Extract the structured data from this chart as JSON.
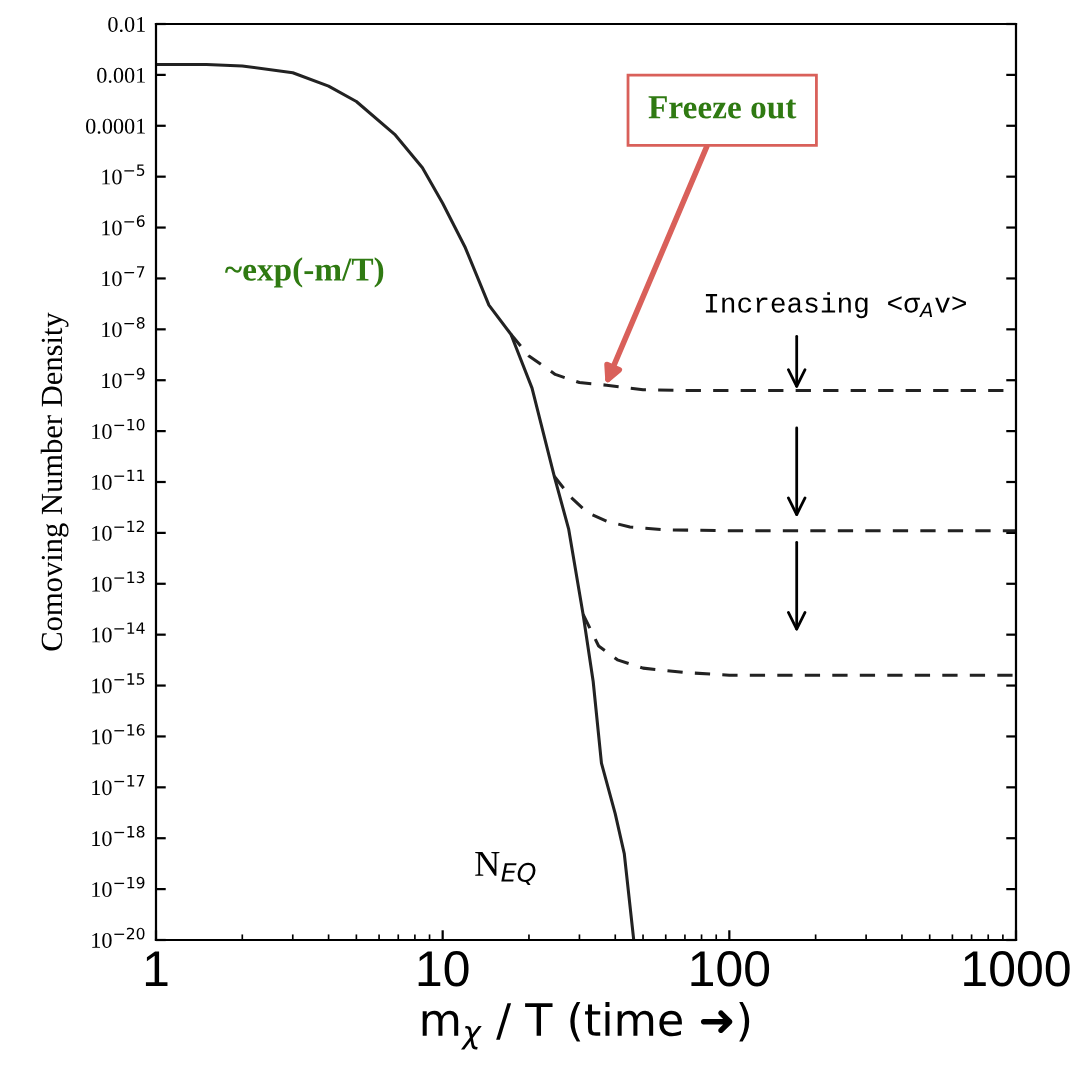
{
  "chart_data": {
    "type": "line",
    "xlabel": "m$_{χ}$ / T (time ➜)",
    "ylabel": "Comoving Number Density",
    "log": "xy",
    "xlim": [
      1,
      1000
    ],
    "ylim": [
      1e-20,
      0.01
    ],
    "xticks": [
      1,
      10,
      100,
      1000
    ],
    "yticks": [
      0.01,
      0.001,
      0.0001,
      {
        "value": 1e-05,
        "label": "10$^{−5}$"
      },
      {
        "value": 1e-06,
        "label": "10$^{−6}$"
      },
      {
        "value": 1e-07,
        "label": "10$^{−7}$"
      },
      {
        "value": 1e-08,
        "label": "10$^{−8}$"
      },
      {
        "value": 1e-09,
        "label": "10$^{−9}$"
      },
      {
        "value": 1e-10,
        "label": "10$^{−10}$"
      },
      {
        "value": 1e-11,
        "label": "10$^{−11}$"
      },
      {
        "value": 1e-12,
        "label": "10$^{−12}$"
      },
      {
        "value": 1e-13,
        "label": "10$^{−13}$"
      },
      {
        "value": 1e-14,
        "label": "10$^{−14}$"
      },
      {
        "value": 1e-15,
        "label": "10$^{−15}$"
      },
      {
        "value": 1e-16,
        "label": "10$^{−16}$"
      },
      {
        "value": 1e-17,
        "label": "10$^{−17}$"
      },
      {
        "value": 1e-18,
        "label": "10$^{−18}$"
      },
      {
        "value": 1e-19,
        "label": "10$^{−19}$"
      },
      {
        "value": 1e-20,
        "label": "10$^{−20}$"
      }
    ],
    "series": [
      {
        "color": "#222222",
        "line_style": "solid",
        "x": [
          1,
          1.5,
          2,
          3,
          4,
          5,
          6.8,
          8.5,
          10,
          12,
          14.5,
          17.3,
          20.5,
          24.5,
          27.5,
          30.9,
          33.5,
          35.8,
          40,
          43,
          46.4
        ],
        "values": [
          0.0016,
          0.0016,
          0.0015,
          0.0011,
          0.0006,
          0.0003,
          6.8e-05,
          1.5e-05,
          3e-06,
          4e-07,
          3e-08,
          8e-09,
          7e-10,
          1.3e-11,
          1.2e-12,
          2.5e-14,
          1.2e-15,
          3e-17,
          3e-18,
          5e-19,
          1e-20
        ]
      },
      {
        "color": "#222222",
        "line_style": "dashed",
        "x": [
          17.3,
          20,
          24.7,
          30,
          37.3,
          50,
          70,
          100,
          200,
          500,
          1000
        ],
        "values": [
          8e-09,
          3e-09,
          1.3e-09,
          9e-10,
          8e-10,
          6.5e-10,
          6.3e-10,
          6.3e-10,
          6.3e-10,
          6.3e-10,
          6.3e-10
        ]
      },
      {
        "color": "#222222",
        "line_style": "dashed",
        "x": [
          24.5,
          28,
          32,
          37.3,
          45,
          60,
          100,
          200,
          500,
          1000
        ],
        "values": [
          1.3e-11,
          5e-12,
          2.5e-12,
          1.7e-12,
          1.3e-12,
          1.15e-12,
          1.1e-12,
          1.1e-12,
          1.1e-12,
          1.1e-12
        ]
      },
      {
        "color": "#222222",
        "line_style": "dashed",
        "x": [
          30.9,
          35,
          40.7,
          50,
          70,
          100,
          200,
          500,
          1000
        ],
        "values": [
          2.5e-14,
          6e-15,
          3.2e-15,
          2.2e-15,
          1.8e-15,
          1.6e-15,
          1.6e-15,
          1.6e-15,
          1.6e-15
        ]
      }
    ],
    "annotations": [
      {
        "text": "Freeze out",
        "x": 37,
        "y": 8e-10
      },
      "~exp(-m/T)",
      "N$_{EQ}$",
      "Increasing <σ$_{A}$v>"
    ],
    "legend": false,
    "grid": false
  }
}
